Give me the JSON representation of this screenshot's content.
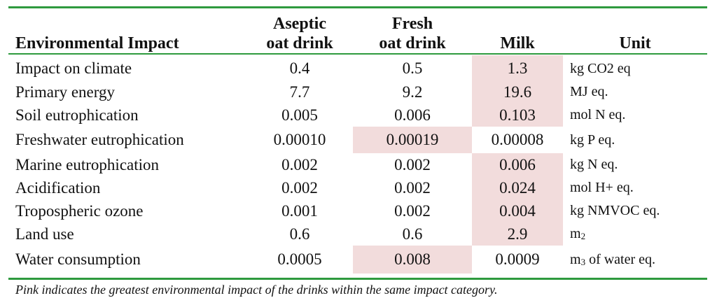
{
  "header": {
    "col0": "Environmental Impact",
    "col1_line1": "Aseptic",
    "col1_line2": "oat drink",
    "col2_line1": "Fresh",
    "col2_line2": "oat drink",
    "col3": "Milk",
    "col4": "Unit"
  },
  "rows": [
    {
      "name": "Impact on climate",
      "aseptic": "0.4",
      "fresh": "0.5",
      "milk": "1.3",
      "unit": "kg CO2 eq"
    },
    {
      "name": "Primary energy",
      "aseptic": "7.7",
      "fresh": "9.2",
      "milk": "19.6",
      "unit": "MJ eq."
    },
    {
      "name": "Soil eutrophication",
      "aseptic": "0.005",
      "fresh": "0.006",
      "milk": "0.103",
      "unit": "mol N eq."
    },
    {
      "name": "Freshwater eutrophication",
      "aseptic": "0.00010",
      "fresh": "0.00019",
      "milk": "0.00008",
      "unit": "kg P eq."
    },
    {
      "name": "Marine eutrophication",
      "aseptic": "0.002",
      "fresh": "0.002",
      "milk": "0.006",
      "unit": "kg N eq."
    },
    {
      "name": "Acidification",
      "aseptic": "0.002",
      "fresh": "0.002",
      "milk": "0.024",
      "unit": "mol H+ eq."
    },
    {
      "name": "Tropospheric ozone",
      "aseptic": "0.001",
      "fresh": "0.002",
      "milk": "0.004",
      "unit": "kg NMVOC eq."
    },
    {
      "name": "Land use",
      "aseptic": "0.6",
      "fresh": "0.6",
      "milk": "2.9",
      "unit_base": "m",
      "unit_sub": "2"
    },
    {
      "name": "Water consumption",
      "aseptic": "0.0005",
      "fresh": "0.008",
      "milk": "0.0009",
      "unit_base": "m",
      "unit_sub": "3",
      "unit_rest": " of water eq."
    }
  ],
  "colors": {
    "rule": "#2e9a3e",
    "highlight": "#f2dcdc"
  },
  "caption": "Pink indicates the greatest environmental impact of the drinks within the same impact category."
}
